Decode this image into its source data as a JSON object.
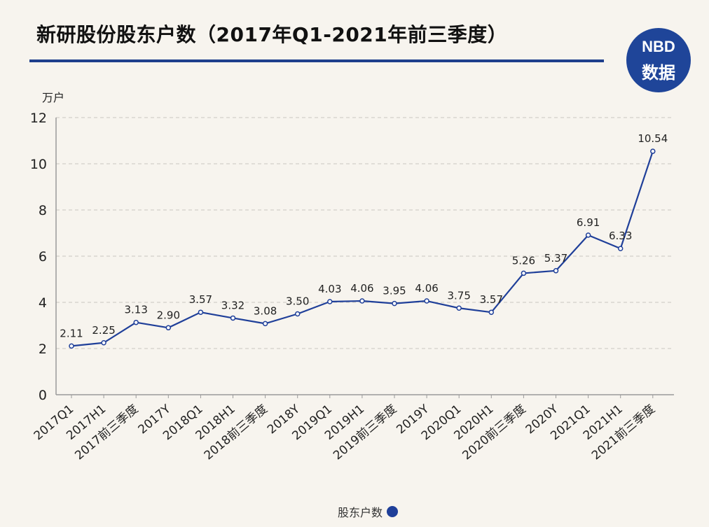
{
  "title": "新研股份股东户数（2017年Q1-2021年前三季度）",
  "logo": {
    "line1": "NBD",
    "line2": "数据"
  },
  "colors": {
    "accent": "#1e3f8c",
    "line": "#1f3f99",
    "logo_bg": "#1f4599"
  },
  "chart_data": {
    "type": "line",
    "title": "新研股份股东户数（2017年Q1-2021年前三季度）",
    "ylabel": "万户",
    "xlabel": "",
    "ylim": [
      0,
      12
    ],
    "yticks": [
      0,
      2,
      4,
      6,
      8,
      10,
      12
    ],
    "grid": true,
    "legend_position": "bottom-center",
    "categories": [
      "2017Q1",
      "2017H1",
      "2017前三季度",
      "2017Y",
      "2018Q1",
      "2018H1",
      "2018前三季度",
      "2018Y",
      "2019Q1",
      "2019H1",
      "2019前三季度",
      "2019Y",
      "2020Q1",
      "2020H1",
      "2020前三季度",
      "2020Y",
      "2021Q1",
      "2021H1",
      "2021前三季度"
    ],
    "series": [
      {
        "name": "股东户数",
        "values": [
          2.11,
          2.25,
          3.13,
          2.9,
          3.57,
          3.32,
          3.08,
          3.5,
          4.03,
          4.06,
          3.95,
          4.06,
          3.75,
          3.57,
          5.26,
          5.37,
          6.91,
          6.33,
          10.54
        ],
        "labels": [
          "2.11",
          "2.25",
          "3.13",
          "2.90",
          "3.57",
          "3.32",
          "3.08",
          "3.50",
          "4.03",
          "4.06",
          "3.95",
          "4.06",
          "3.75",
          "3.57",
          "5.26",
          "5.37",
          "6.91",
          "6.33",
          "10.54"
        ]
      }
    ]
  }
}
